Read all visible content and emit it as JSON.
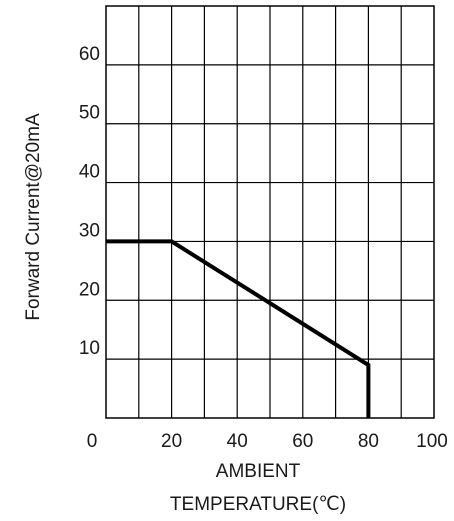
{
  "chart_data": {
    "type": "line",
    "title": "",
    "xlabel_lines": [
      "AMBIENT",
      "TEMPERATURE(℃)"
    ],
    "ylabel": "Forward Current@20mA",
    "xlim": [
      0,
      100
    ],
    "ylim": [
      0,
      70
    ],
    "x_ticks": [
      0,
      20,
      40,
      60,
      80,
      100
    ],
    "x_tick_labels": [
      "0",
      "20",
      "40",
      "60",
      "80",
      "100"
    ],
    "y_ticks": [
      10,
      20,
      30,
      40,
      50,
      60
    ],
    "y_tick_labels": [
      "10",
      "20",
      "30",
      "40",
      "50",
      "60"
    ],
    "grid": true,
    "grid_x_step": 10,
    "grid_y_step": 10,
    "series": [
      {
        "x": [
          0,
          20,
          80,
          80
        ],
        "y": [
          30,
          30,
          9,
          0
        ]
      }
    ],
    "colors": {
      "line": "#000000",
      "grid": "#000000",
      "text": "#1a1a1a"
    }
  }
}
